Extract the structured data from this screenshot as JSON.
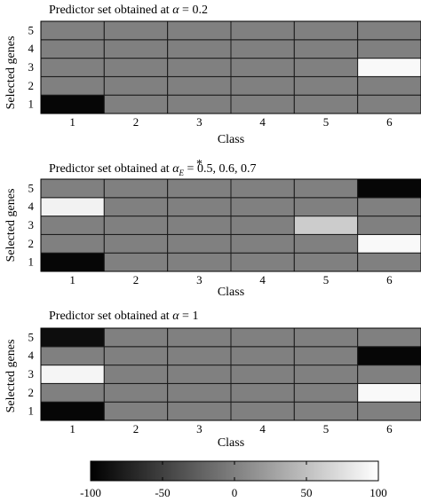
{
  "chart_data": {
    "type": "heatmap",
    "panels": [
      {
        "title_prefix": "Predictor set obtained at ",
        "title_symbol": "α",
        "title_sub": "",
        "title_suffix": " = 0.2",
        "xlabel": "Class",
        "ylabel": "Selected genes",
        "x_categories": [
          "1",
          "2",
          "3",
          "4",
          "5",
          "6"
        ],
        "y_categories": [
          "1",
          "2",
          "3",
          "4",
          "5"
        ],
        "values": [
          [
            -95,
            0,
            0,
            0,
            0,
            0
          ],
          [
            0,
            0,
            0,
            0,
            0,
            0
          ],
          [
            0,
            0,
            0,
            0,
            0,
            95
          ],
          [
            0,
            0,
            0,
            0,
            0,
            0
          ],
          [
            0,
            0,
            0,
            0,
            0,
            0
          ]
        ]
      },
      {
        "title_prefix": "Predictor set obtained at ",
        "title_symbol": "α",
        "title_sub": "E",
        "title_suffix": " = 0.5, 0.6, 0.7",
        "xlabel": "Class",
        "ylabel": "Selected genes",
        "x_categories": [
          "1",
          "2",
          "3",
          "4",
          "5",
          "6"
        ],
        "y_categories": [
          "1",
          "2",
          "3",
          "4",
          "5"
        ],
        "values": [
          [
            -95,
            0,
            0,
            0,
            0,
            0
          ],
          [
            0,
            0,
            0,
            0,
            0,
            95
          ],
          [
            0,
            0,
            0,
            0,
            60,
            0
          ],
          [
            90,
            0,
            0,
            0,
            0,
            0
          ],
          [
            0,
            0,
            0,
            0,
            0,
            -95
          ]
        ]
      },
      {
        "title_prefix": "Predictor set obtained at ",
        "title_symbol": "α",
        "title_sub": "",
        "title_suffix": " = 1",
        "xlabel": "Class",
        "ylabel": "Selected genes",
        "x_categories": [
          "1",
          "2",
          "3",
          "4",
          "5",
          "6"
        ],
        "y_categories": [
          "1",
          "2",
          "3",
          "4",
          "5"
        ],
        "values": [
          [
            -95,
            0,
            0,
            0,
            0,
            0
          ],
          [
            0,
            0,
            0,
            0,
            0,
            95
          ],
          [
            92,
            0,
            0,
            0,
            0,
            0
          ],
          [
            0,
            0,
            0,
            0,
            0,
            -95
          ],
          [
            -90,
            0,
            0,
            0,
            0,
            0
          ]
        ]
      }
    ],
    "colorbar": {
      "range": [
        -100,
        100
      ],
      "ticks": [
        "-100",
        "-50",
        "0",
        "50",
        "100"
      ],
      "colormap": "gray",
      "low_color": "#000000",
      "high_color": "#ffffff"
    }
  }
}
